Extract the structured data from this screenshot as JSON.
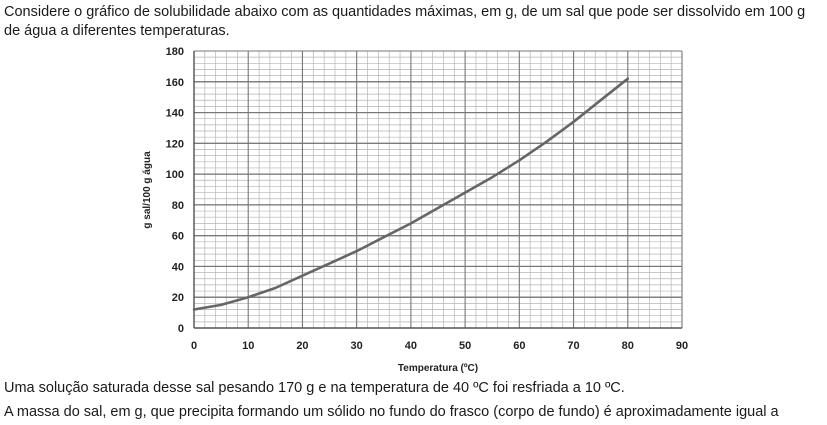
{
  "question": {
    "intro": "Considere o gráfico de solubilidade abaixo com as quantidades máximas, em g, de um sal que pode ser dissolvido em 100 g de água a diferentes temperaturas.",
    "line1": "Uma solução saturada desse sal pesando 170 g e na temperatura de 40 ºC foi resfriada a 10 ºC.",
    "line2": "A massa do sal, em g, que precipita formando um sólido no fundo do frasco (corpo de fundo) é aproximadamente igual a"
  },
  "chart_data": {
    "type": "line",
    "title": "",
    "xlabel": "Temperatura (ºC)",
    "ylabel": "g sal/100 g água",
    "xlim": [
      0,
      90
    ],
    "ylim": [
      0,
      180
    ],
    "x_ticks": [
      "0",
      "10",
      "20",
      "30",
      "40",
      "50",
      "60",
      "70",
      "80",
      "90"
    ],
    "y_ticks": [
      "0",
      "20",
      "40",
      "60",
      "80",
      "100",
      "120",
      "140",
      "160",
      "180"
    ],
    "grid": true,
    "minor_grid_step_x": 2,
    "minor_grid_step_y": 4,
    "colors": {
      "line": "#666666",
      "grid_major": "#777777",
      "grid_minor": "#b5b5b5"
    },
    "series": [
      {
        "x": [
          0,
          5,
          10,
          15,
          20,
          25,
          30,
          35,
          40,
          45,
          50,
          55,
          60,
          65,
          70,
          75,
          80
        ],
        "values": [
          12,
          15,
          20,
          26,
          34,
          42,
          50,
          59,
          68,
          78,
          88,
          98,
          109,
          121,
          134,
          148,
          162
        ]
      }
    ]
  }
}
